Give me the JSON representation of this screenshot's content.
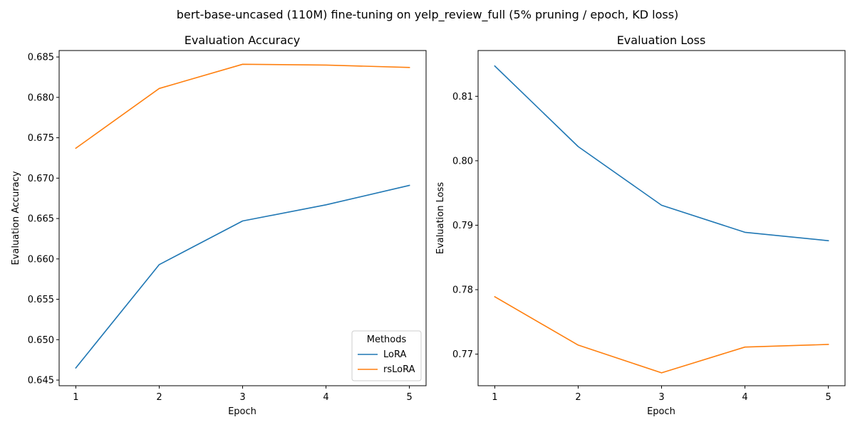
{
  "figure": {
    "title": "bert-base-uncased (110M) fine-tuning on yelp_review_full (5% pruning / epoch, KD loss)"
  },
  "chart_data": [
    {
      "type": "line",
      "title": "Evaluation Accuracy",
      "xlabel": "Epoch",
      "ylabel": "Evaluation Accuracy",
      "x": [
        1,
        2,
        3,
        4,
        5
      ],
      "xticks": [
        "1",
        "2",
        "3",
        "4",
        "5"
      ],
      "yticks": [
        0.645,
        0.65,
        0.655,
        0.66,
        0.665,
        0.67,
        0.675,
        0.68,
        0.685
      ],
      "ytick_labels": [
        "0.645",
        "0.650",
        "0.655",
        "0.660",
        "0.665",
        "0.670",
        "0.675",
        "0.680",
        "0.685"
      ],
      "xlim": [
        0.8,
        5.2
      ],
      "ylim": [
        0.6443,
        0.6858
      ],
      "grid": false,
      "series": [
        {
          "name": "LoRA",
          "color": "#1f77b4",
          "values": [
            0.6465,
            0.6593,
            0.6647,
            0.6667,
            0.6691
          ]
        },
        {
          "name": "rsLoRA",
          "color": "#ff7f0e",
          "values": [
            0.6737,
            0.6811,
            0.6841,
            0.684,
            0.6837
          ]
        }
      ],
      "legend": {
        "title": "Methods",
        "position": "lower-right"
      }
    },
    {
      "type": "line",
      "title": "Evaluation Loss",
      "xlabel": "Epoch",
      "ylabel": "Evaluation Loss",
      "x": [
        1,
        2,
        3,
        4,
        5
      ],
      "xticks": [
        "1",
        "2",
        "3",
        "4",
        "5"
      ],
      "yticks": [
        0.77,
        0.78,
        0.79,
        0.8,
        0.81
      ],
      "ytick_labels": [
        "0.77",
        "0.78",
        "0.79",
        "0.80",
        "0.81"
      ],
      "xlim": [
        0.8,
        5.2
      ],
      "ylim": [
        0.7651,
        0.8171
      ],
      "grid": false,
      "series": [
        {
          "name": "LoRA",
          "color": "#1f77b4",
          "values": [
            0.8147,
            0.8022,
            0.7931,
            0.7889,
            0.7876
          ]
        },
        {
          "name": "rsLoRA",
          "color": "#ff7f0e",
          "values": [
            0.7789,
            0.7714,
            0.7671,
            0.7711,
            0.7715
          ]
        }
      ]
    }
  ]
}
